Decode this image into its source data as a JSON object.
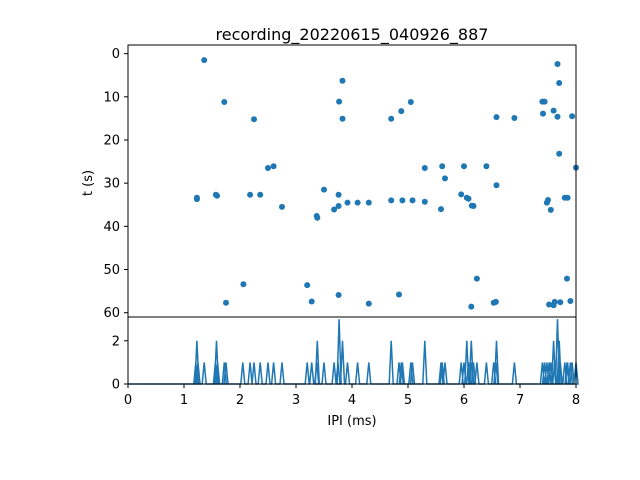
{
  "chart_data": [
    {
      "type": "scatter",
      "title": "recording_20220615_040926_887",
      "xlabel": "",
      "ylabel": "t (s)",
      "xlim": [
        0,
        8
      ],
      "ylim": [
        61,
        -2
      ],
      "y_inverted": true,
      "yticks": [
        "0",
        "10",
        "20",
        "30",
        "40",
        "50",
        "60"
      ],
      "marker_color": "#1f77b4",
      "points": [
        {
          "x": 1.36,
          "y": 1.5
        },
        {
          "x": 1.72,
          "y": 11.2
        },
        {
          "x": 2.25,
          "y": 15.2
        },
        {
          "x": 1.23,
          "y": 33.4
        },
        {
          "x": 1.23,
          "y": 33.7
        },
        {
          "x": 1.57,
          "y": 32.7
        },
        {
          "x": 1.59,
          "y": 32.9
        },
        {
          "x": 2.18,
          "y": 32.7
        },
        {
          "x": 2.36,
          "y": 32.7
        },
        {
          "x": 2.5,
          "y": 26.5
        },
        {
          "x": 2.6,
          "y": 26.1
        },
        {
          "x": 2.75,
          "y": 35.5
        },
        {
          "x": 1.75,
          "y": 57.7
        },
        {
          "x": 2.06,
          "y": 53.4
        },
        {
          "x": 3.2,
          "y": 53.6
        },
        {
          "x": 3.28,
          "y": 57.4
        },
        {
          "x": 3.37,
          "y": 37.6
        },
        {
          "x": 3.38,
          "y": 38.0
        },
        {
          "x": 3.5,
          "y": 31.5
        },
        {
          "x": 3.68,
          "y": 36.1
        },
        {
          "x": 3.76,
          "y": 35.3
        },
        {
          "x": 3.76,
          "y": 32.7
        },
        {
          "x": 3.77,
          "y": 11.1
        },
        {
          "x": 3.83,
          "y": 6.3
        },
        {
          "x": 3.83,
          "y": 15.1
        },
        {
          "x": 3.92,
          "y": 34.5
        },
        {
          "x": 4.1,
          "y": 34.5
        },
        {
          "x": 4.3,
          "y": 34.5
        },
        {
          "x": 3.76,
          "y": 55.9
        },
        {
          "x": 4.3,
          "y": 57.9
        },
        {
          "x": 4.7,
          "y": 15.1
        },
        {
          "x": 4.7,
          "y": 34.0
        },
        {
          "x": 4.88,
          "y": 13.3
        },
        {
          "x": 4.9,
          "y": 34.0
        },
        {
          "x": 5.05,
          "y": 11.2
        },
        {
          "x": 5.08,
          "y": 34.0
        },
        {
          "x": 4.84,
          "y": 55.8
        },
        {
          "x": 5.3,
          "y": 34.3
        },
        {
          "x": 5.3,
          "y": 26.5
        },
        {
          "x": 5.59,
          "y": 36.0
        },
        {
          "x": 5.61,
          "y": 26.1
        },
        {
          "x": 5.66,
          "y": 28.9
        },
        {
          "x": 5.95,
          "y": 32.6
        },
        {
          "x": 6.0,
          "y": 26.1
        },
        {
          "x": 6.05,
          "y": 33.4
        },
        {
          "x": 6.08,
          "y": 33.6
        },
        {
          "x": 6.14,
          "y": 35.2
        },
        {
          "x": 6.17,
          "y": 35.3
        },
        {
          "x": 6.4,
          "y": 26.1
        },
        {
          "x": 6.58,
          "y": 14.7
        },
        {
          "x": 6.58,
          "y": 30.5
        },
        {
          "x": 6.9,
          "y": 14.9
        },
        {
          "x": 6.23,
          "y": 52.1
        },
        {
          "x": 6.13,
          "y": 58.6
        },
        {
          "x": 6.53,
          "y": 57.7
        },
        {
          "x": 6.57,
          "y": 57.5
        },
        {
          "x": 7.4,
          "y": 11.1
        },
        {
          "x": 7.44,
          "y": 11.1
        },
        {
          "x": 7.41,
          "y": 13.9
        },
        {
          "x": 7.6,
          "y": 13.2
        },
        {
          "x": 7.67,
          "y": 2.4
        },
        {
          "x": 7.7,
          "y": 6.8
        },
        {
          "x": 7.67,
          "y": 14.6
        },
        {
          "x": 7.93,
          "y": 14.5
        },
        {
          "x": 7.7,
          "y": 23.2
        },
        {
          "x": 8.0,
          "y": 26.4
        },
        {
          "x": 7.48,
          "y": 34.5
        },
        {
          "x": 7.5,
          "y": 33.9
        },
        {
          "x": 7.55,
          "y": 36.2
        },
        {
          "x": 7.8,
          "y": 33.4
        },
        {
          "x": 7.85,
          "y": 33.4
        },
        {
          "x": 7.84,
          "y": 52.1
        },
        {
          "x": 7.52,
          "y": 58.1
        },
        {
          "x": 7.6,
          "y": 58.3
        },
        {
          "x": 7.62,
          "y": 57.5
        },
        {
          "x": 7.72,
          "y": 57.6
        },
        {
          "x": 7.9,
          "y": 57.3
        }
      ]
    },
    {
      "type": "line",
      "title": "",
      "xlabel": "IPI (ms)",
      "ylabel": "",
      "xlim": [
        0,
        8
      ],
      "ylim": [
        0,
        3.1
      ],
      "xticks": [
        "0",
        "1",
        "2",
        "3",
        "4",
        "5",
        "6",
        "7",
        "8"
      ],
      "yticks": [
        "0",
        "2"
      ],
      "line_color": "#1f77b4",
      "note_values": "histogram counts per IPI bin",
      "x": [
        0,
        1.21,
        1.23,
        1.25,
        1.36,
        1.56,
        1.58,
        1.6,
        1.72,
        1.75,
        2.05,
        2.18,
        2.25,
        2.36,
        2.5,
        2.6,
        2.75,
        3.2,
        3.28,
        3.37,
        3.38,
        3.5,
        3.68,
        3.75,
        3.77,
        3.83,
        3.92,
        4.1,
        4.3,
        4.7,
        4.84,
        4.88,
        4.9,
        5.05,
        5.08,
        5.3,
        5.59,
        5.61,
        5.66,
        5.95,
        6.0,
        6.05,
        6.08,
        6.13,
        6.14,
        6.17,
        6.23,
        6.4,
        6.53,
        6.57,
        6.58,
        6.9,
        7.4,
        7.44,
        7.48,
        7.52,
        7.55,
        7.6,
        7.62,
        7.67,
        7.7,
        7.72,
        7.8,
        7.84,
        7.85,
        7.9,
        7.93,
        8.0
      ],
      "values": [
        0,
        1,
        2,
        1,
        1,
        1,
        2,
        1,
        1,
        1,
        1,
        1,
        1,
        1,
        1,
        1,
        1,
        1,
        1,
        1,
        2,
        1,
        1,
        1,
        3,
        2,
        1,
        1,
        1,
        2,
        1,
        1,
        1,
        1,
        1,
        2,
        1,
        1,
        1,
        1,
        1,
        2,
        1,
        2,
        1,
        1,
        1,
        1,
        1,
        1,
        2,
        1,
        1,
        1,
        1,
        1,
        1,
        2,
        1,
        3,
        2,
        1,
        1,
        1,
        1,
        1,
        1,
        1
      ]
    }
  ]
}
